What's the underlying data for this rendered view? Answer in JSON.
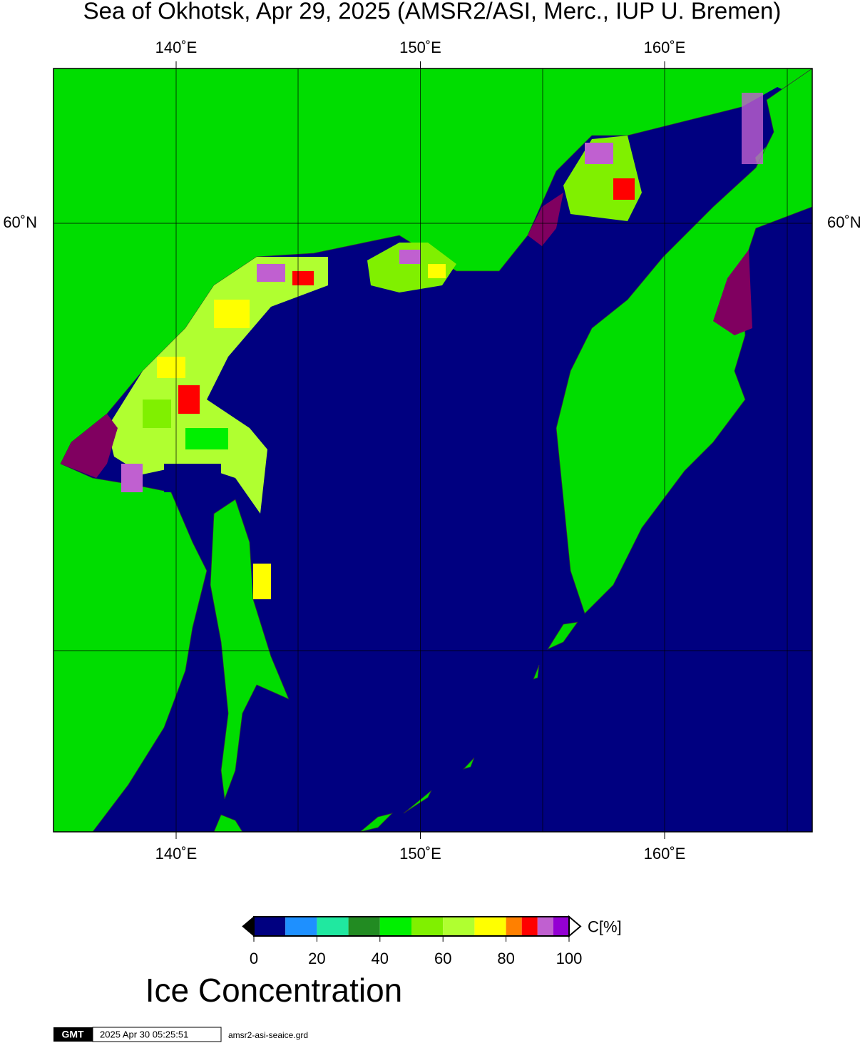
{
  "title": "Sea of Okhotsk, Apr 29, 2025 (AMSR2/ASI, Merc., IUP U. Bremen)",
  "map": {
    "lon_labels": [
      {
        "value": 140,
        "label": "140˚E"
      },
      {
        "value": 150,
        "label": "150˚E"
      },
      {
        "value": 160,
        "label": "160˚E"
      }
    ],
    "lat_labels": [
      {
        "value": 60,
        "label": "60˚N"
      }
    ]
  },
  "colorbar": {
    "bins": [
      0,
      10,
      20,
      30,
      40,
      50,
      60,
      70,
      80,
      85,
      90,
      95,
      100
    ],
    "colors": [
      "#000080",
      "#1e90ff",
      "#20e8a0",
      "#228b22",
      "#00f000",
      "#80f000",
      "#b0ff30",
      "#ffff00",
      "#ff8000",
      "#ff0000",
      "#c060d0",
      "#9400d3"
    ],
    "ticks": [
      0,
      20,
      40,
      60,
      80,
      100
    ],
    "unit_label": "C[%]",
    "title": "Ice Concentration"
  },
  "footer": {
    "logo": "GMT",
    "timestamp": "2025 Apr 30 05:25:51",
    "filename": "amsr2-asi-seaice.grd"
  }
}
